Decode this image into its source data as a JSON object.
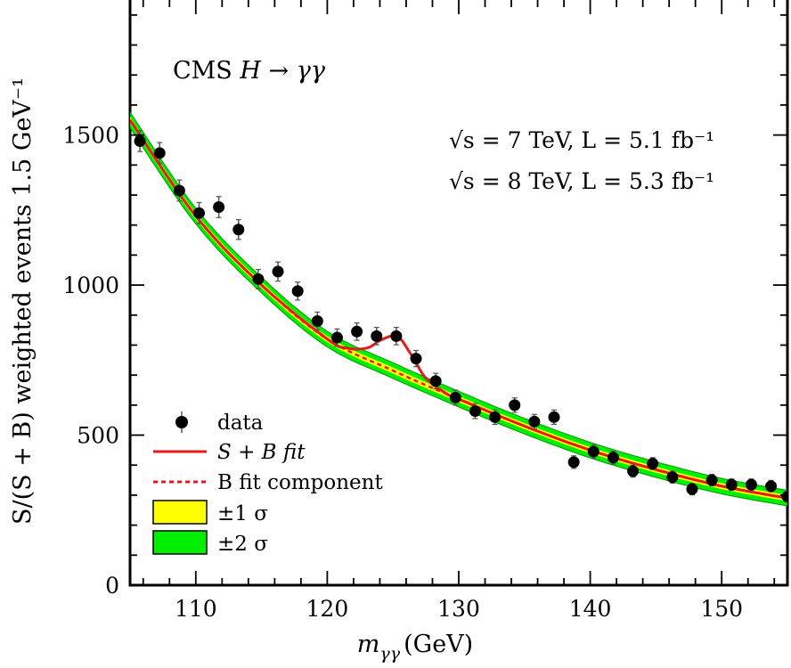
{
  "chart_data": {
    "type": "scatter",
    "xlim": [
      105,
      155
    ],
    "ylim": [
      0,
      1950
    ],
    "x_ticks": [
      110,
      120,
      130,
      140,
      150
    ],
    "x_tick_labels": [
      "110",
      "120",
      "130",
      "140",
      "150"
    ],
    "y_ticks": [
      0,
      500,
      1000,
      1500
    ],
    "y_tick_labels": [
      "0",
      "500",
      "1000",
      "1500"
    ],
    "xlabel": {
      "var": "m",
      "sub": "γγ",
      "unit": "(GeV)"
    },
    "ylabel": "S/(S + B) weighted events 1.5 GeV⁻¹",
    "annotations": {
      "experiment": "CMS",
      "process": "H → γγ",
      "energy_7": "√s = 7 TeV, L = 5.1 fb⁻¹",
      "energy_8": "√s = 8 TeV, L = 5.3 fb⁻¹"
    },
    "legend": {
      "placement": "bottom-left",
      "entries": [
        {
          "label": "data",
          "kind": "marker"
        },
        {
          "label": "S + B fit",
          "kind": "solid-line",
          "color": "#e41a1c"
        },
        {
          "label": "B fit component",
          "kind": "dashed-line",
          "color": "#e41a1c"
        },
        {
          "label": "±1 σ",
          "kind": "band",
          "color": "#ffff00"
        },
        {
          "label": "±2 σ",
          "kind": "band",
          "color": "#00ee00"
        }
      ]
    },
    "series": [
      {
        "kind": "data",
        "x": [
          105.75,
          107.25,
          108.75,
          110.25,
          111.75,
          113.25,
          114.75,
          116.25,
          117.75,
          119.25,
          120.75,
          122.25,
          123.75,
          125.25,
          126.75,
          128.25,
          129.75,
          131.25,
          132.75,
          134.25,
          135.75,
          137.25,
          138.75,
          140.25,
          141.75,
          143.25,
          144.75,
          146.25,
          147.75,
          149.25,
          150.75,
          152.25,
          153.75,
          155.0
        ],
        "y": [
          1480,
          1440,
          1315,
          1240,
          1260,
          1185,
          1020,
          1045,
          980,
          880,
          825,
          845,
          830,
          830,
          755,
          680,
          625,
          580,
          560,
          600,
          545,
          560,
          410,
          445,
          425,
          380,
          405,
          360,
          320,
          350,
          335,
          335,
          330,
          295
        ],
        "yerr": [
          35,
          35,
          35,
          35,
          35,
          33,
          32,
          32,
          30,
          30,
          29,
          29,
          29,
          29,
          27,
          26,
          25,
          25,
          24,
          24,
          24,
          24,
          21,
          22,
          21,
          20,
          20,
          20,
          19,
          19,
          19,
          19,
          19,
          18
        ]
      },
      {
        "kind": "b_fit",
        "x": [
          105,
          110,
          115,
          120,
          125,
          130,
          135,
          140,
          145,
          150,
          155
        ],
        "y": [
          1550,
          1230,
          1000,
          820,
          715,
          620,
          530,
          450,
          385,
          330,
          290
        ]
      },
      {
        "kind": "s_plus_b_fit",
        "x": [
          105,
          110,
          115,
          120,
          121.5,
          123,
          124,
          125,
          125.5,
          126.5,
          127.5,
          129,
          130,
          135,
          140,
          145,
          150,
          155
        ],
        "y": [
          1550,
          1230,
          1000,
          820,
          790,
          790,
          815,
          832,
          825,
          760,
          690,
          640,
          620,
          530,
          450,
          385,
          330,
          290
        ]
      }
    ],
    "bands": {
      "sigma1": 10,
      "sigma2": 26
    }
  }
}
